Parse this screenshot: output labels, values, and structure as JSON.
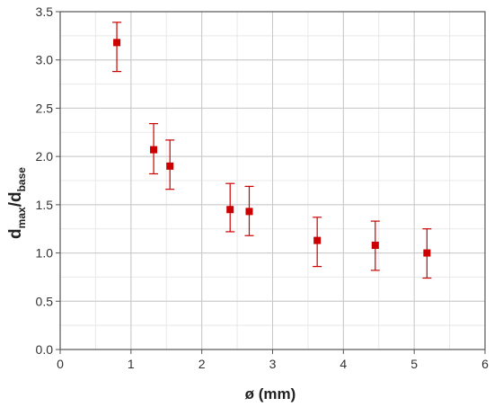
{
  "chart_data": {
    "type": "scatter",
    "title": "",
    "xlabel": "ø (mm)",
    "ylabel": {
      "main1": "d",
      "sub1": "max",
      "sep": "/d",
      "sub2": "base"
    },
    "xlim": [
      0,
      6
    ],
    "ylim": [
      0,
      3.5
    ],
    "x_ticks": [
      "0",
      "1",
      "2",
      "3",
      "4",
      "5",
      "6"
    ],
    "y_ticks": [
      "0.0",
      "0.5",
      "1.0",
      "1.5",
      "2.0",
      "2.5",
      "3.0",
      "3.5"
    ],
    "x_minor_step": 0.5,
    "y_minor_step": 0.25,
    "grid": true,
    "marker_color": "#cc0000",
    "series": [
      {
        "points": [
          {
            "x": 0.8,
            "y": 3.18,
            "err_low": 2.88,
            "err_high": 3.39
          },
          {
            "x": 1.32,
            "y": 2.07,
            "err_low": 1.82,
            "err_high": 2.34
          },
          {
            "x": 1.55,
            "y": 1.9,
            "err_low": 1.66,
            "err_high": 2.17
          },
          {
            "x": 2.4,
            "y": 1.45,
            "err_low": 1.22,
            "err_high": 1.72
          },
          {
            "x": 2.67,
            "y": 1.43,
            "err_low": 1.18,
            "err_high": 1.69
          },
          {
            "x": 3.63,
            "y": 1.13,
            "err_low": 0.86,
            "err_high": 1.37
          },
          {
            "x": 4.45,
            "y": 1.08,
            "err_low": 0.82,
            "err_high": 1.33
          },
          {
            "x": 5.18,
            "y": 1.0,
            "err_low": 0.74,
            "err_high": 1.25
          }
        ]
      }
    ]
  }
}
